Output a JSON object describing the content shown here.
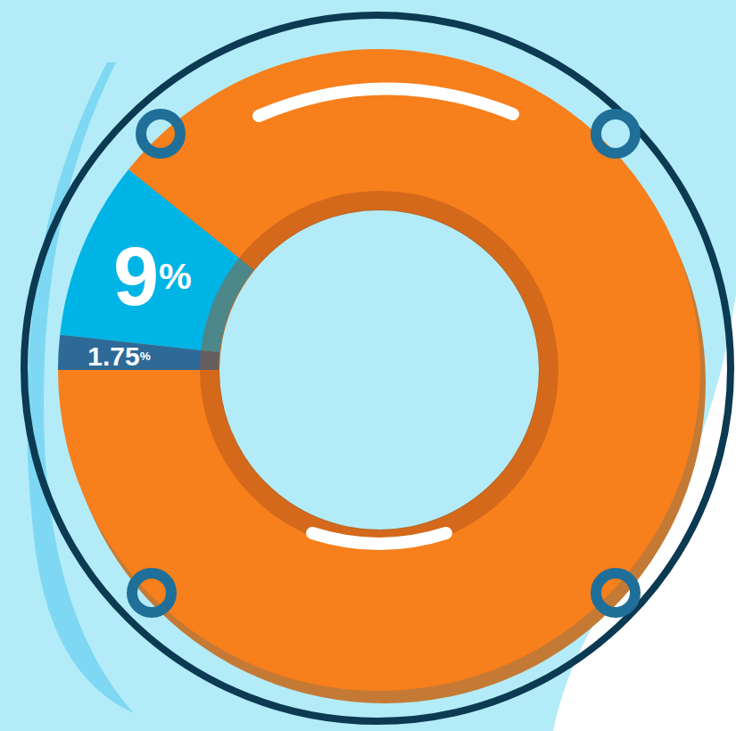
{
  "chart_data": {
    "type": "pie",
    "values": [
      1.75,
      9,
      89.25
    ],
    "value_labels": [
      "1.75%",
      "9%",
      null
    ],
    "colors": [
      "#2e6a98",
      "#00b4e6",
      "#f77f1c"
    ],
    "data_labels": true
  }
}
